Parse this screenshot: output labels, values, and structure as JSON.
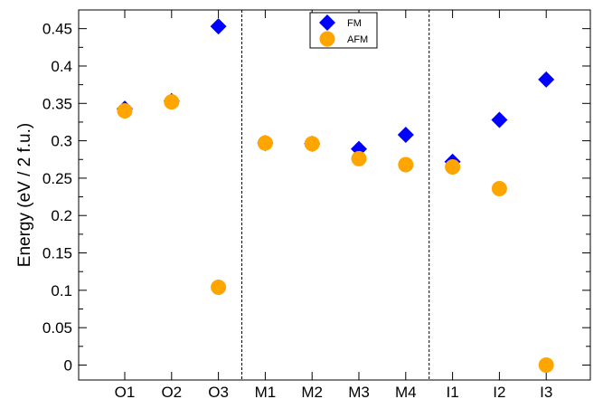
{
  "chart_data": {
    "type": "scatter",
    "categories": [
      "O1",
      "O2",
      "O3",
      "M1",
      "M2",
      "M3",
      "M4",
      "I1",
      "I2",
      "I3"
    ],
    "ylabel": "Energy (eV / 2 f.u.)",
    "xlabel": "",
    "ylim": [
      -0.02,
      0.475
    ],
    "yticks": [
      0,
      0.05,
      0.1,
      0.15,
      0.2,
      0.25,
      0.3,
      0.35,
      0.4,
      0.45
    ],
    "ytick_labels": [
      "0",
      "0.05",
      "0.1",
      "0.15",
      "0.2",
      "0.25",
      "0.3",
      "0.35",
      "0.4",
      "0.45"
    ],
    "separators_after_index": [
      2,
      6
    ],
    "grid": false,
    "legend_position": "top-center",
    "series": [
      {
        "name": "FM",
        "marker": "diamond",
        "color": "#0000ff",
        "values": [
          0.343,
          0.353,
          0.453,
          0.297,
          0.296,
          0.289,
          0.308,
          0.272,
          0.328,
          0.382
        ]
      },
      {
        "name": "AFM",
        "marker": "circle",
        "color": "#ffa500",
        "values": [
          0.34,
          0.352,
          0.104,
          0.297,
          0.296,
          0.276,
          0.268,
          0.265,
          0.236,
          0.0
        ]
      }
    ]
  }
}
